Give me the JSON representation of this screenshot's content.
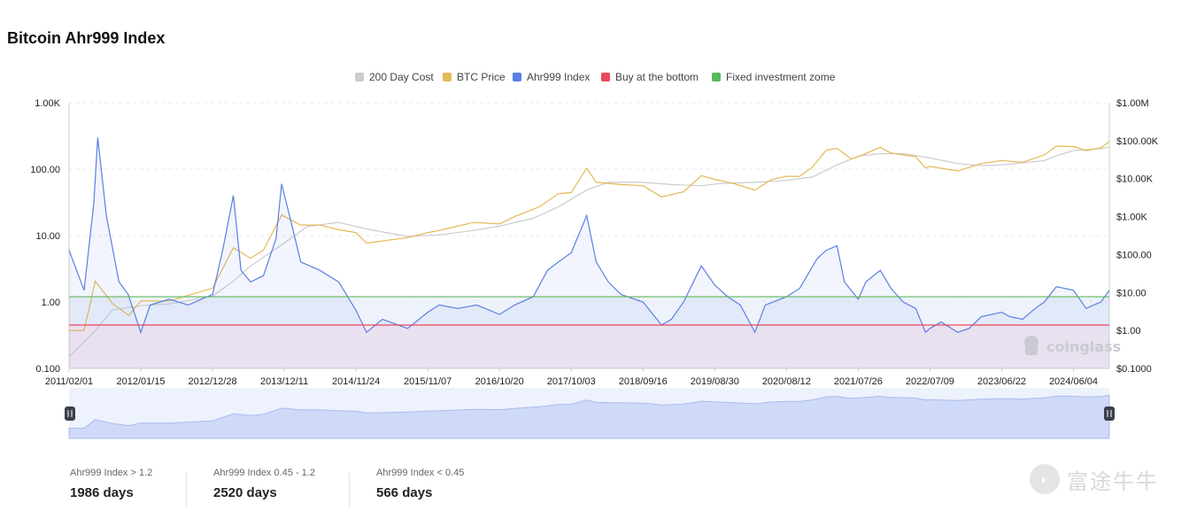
{
  "title": "Bitcoin Ahr999 Index",
  "legend": [
    {
      "label": "200 Day Cost",
      "color": "#cccccc"
    },
    {
      "label": "BTC Price",
      "color": "#e2b955"
    },
    {
      "label": "Ahr999 Index",
      "color": "#5b7fe3"
    },
    {
      "label": "Buy at the bottom",
      "color": "#e8485e"
    },
    {
      "label": "Fixed investment zome",
      "color": "#5cb85c"
    }
  ],
  "chart_data": {
    "type": "line",
    "title": "Bitcoin Ahr999 Index",
    "x_tick_labels": [
      "2011/02/01",
      "2012/01/15",
      "2012/12/28",
      "2013/12/11",
      "2014/11/24",
      "2015/11/07",
      "2016/10/20",
      "2017/10/03",
      "2018/09/16",
      "2019/08/30",
      "2020/08/12",
      "2021/07/26",
      "2022/07/09",
      "2023/06/22",
      "2024/06/04"
    ],
    "left_axis": {
      "scale": "log",
      "ticks": [
        "1.00K",
        "100.00",
        "10.00",
        "1.00",
        "0.100"
      ],
      "range": [
        0.1,
        1000
      ]
    },
    "right_axis": {
      "scale": "log",
      "ticks": [
        "$1.00M",
        "$100.00K",
        "$10.00K",
        "$1.00K",
        "$100.00",
        "$10.00",
        "$1.00",
        "$0.1000"
      ],
      "range": [
        0.1,
        1000000
      ]
    },
    "x_range": [
      "2011/02/01",
      "2024/11/25"
    ],
    "series": [
      {
        "name": "Ahr999 Index",
        "axis": "left",
        "color": "#5b7fe3",
        "x": [
          "2011/02/01",
          "2011/04/15",
          "2011/06/01",
          "2011/06/20",
          "2011/08/01",
          "2011/10/01",
          "2011/11/15",
          "2012/01/15",
          "2012/03/01",
          "2012/06/01",
          "2012/09/01",
          "2012/12/28",
          "2013/02/15",
          "2013/04/08",
          "2013/05/15",
          "2013/07/01",
          "2013/09/01",
          "2013/11/01",
          "2013/11/28",
          "2014/01/15",
          "2014/03/01",
          "2014/06/01",
          "2014/09/01",
          "2014/11/24",
          "2015/01/14",
          "2015/04/01",
          "2015/08/01",
          "2015/11/07",
          "2016/01/01",
          "2016/04/01",
          "2016/07/01",
          "2016/10/20",
          "2017/01/01",
          "2017/04/01",
          "2017/06/10",
          "2017/08/01",
          "2017/10/03",
          "2017/12/17",
          "2018/02/01",
          "2018/04/01",
          "2018/06/01",
          "2018/09/16",
          "2018/12/15",
          "2019/02/01",
          "2019/04/01",
          "2019/06/26",
          "2019/08/30",
          "2019/11/01",
          "2020/01/01",
          "2020/03/12",
          "2020/05/01",
          "2020/08/12",
          "2020/10/15",
          "2021/01/08",
          "2021/02/21",
          "2021/04/14",
          "2021/05/20",
          "2021/07/26",
          "2021/09/01",
          "2021/11/10",
          "2022/01/01",
          "2022/03/01",
          "2022/05/01",
          "2022/06/18",
          "2022/07/09",
          "2022/09/01",
          "2022/11/21",
          "2023/01/15",
          "2023/03/15",
          "2023/06/22",
          "2023/08/01",
          "2023/10/01",
          "2023/12/01",
          "2024/01/15",
          "2024/03/13",
          "2024/06/04",
          "2024/08/05",
          "2024/09/10",
          "2024/10/15",
          "2024/11/25"
        ],
        "values": [
          6.0,
          1.5,
          30,
          300,
          20,
          2.0,
          1.3,
          0.35,
          0.9,
          1.1,
          0.9,
          1.3,
          6.0,
          40,
          3.0,
          2.0,
          2.5,
          9.0,
          60,
          15,
          4.0,
          3.0,
          2.0,
          0.75,
          0.35,
          0.55,
          0.4,
          0.7,
          0.9,
          0.8,
          0.9,
          0.65,
          0.9,
          1.2,
          3.0,
          4.0,
          5.5,
          20,
          4.0,
          2.0,
          1.3,
          1.0,
          0.45,
          0.55,
          1.0,
          3.5,
          1.8,
          1.2,
          0.9,
          0.35,
          0.9,
          1.2,
          1.6,
          4.5,
          6.0,
          7.0,
          2.0,
          1.1,
          2.0,
          3.0,
          1.6,
          1.0,
          0.8,
          0.35,
          0.4,
          0.5,
          0.35,
          0.4,
          0.6,
          0.7,
          0.6,
          0.55,
          0.8,
          1.0,
          1.7,
          1.5,
          0.8,
          0.9,
          1.0,
          1.5
        ]
      },
      {
        "name": "BTC Price",
        "axis": "right",
        "color": "#e2b955",
        "x": [
          "2011/02/01",
          "2011/04/15",
          "2011/06/08",
          "2011/09/01",
          "2011/11/18",
          "2012/01/15",
          "2012/06/01",
          "2012/12/28",
          "2013/04/08",
          "2013/07/01",
          "2013/09/01",
          "2013/11/28",
          "2014/03/01",
          "2014/06/01",
          "2014/09/01",
          "2014/11/24",
          "2015/01/14",
          "2015/08/01",
          "2015/11/07",
          "2016/01/01",
          "2016/06/15",
          "2016/10/20",
          "2017/01/01",
          "2017/05/01",
          "2017/08/01",
          "2017/10/03",
          "2017/12/17",
          "2018/02/01",
          "2018/06/01",
          "2018/09/16",
          "2018/12/15",
          "2019/04/01",
          "2019/06/26",
          "2019/08/30",
          "2019/12/01",
          "2020/03/12",
          "2020/06/01",
          "2020/08/12",
          "2020/10/15",
          "2020/12/15",
          "2021/02/21",
          "2021/04/14",
          "2021/06/22",
          "2021/07/26",
          "2021/11/10",
          "2022/01/01",
          "2022/05/01",
          "2022/06/18",
          "2022/07/09",
          "2022/11/21",
          "2023/03/15",
          "2023/06/22",
          "2023/10/01",
          "2024/01/15",
          "2024/03/13",
          "2024/06/04",
          "2024/08/05",
          "2024/10/15",
          "2024/11/25"
        ],
        "values": [
          1,
          1,
          20,
          5,
          2.5,
          6,
          6,
          13,
          150,
          80,
          130,
          1100,
          600,
          600,
          450,
          380,
          200,
          280,
          380,
          430,
          700,
          640,
          1000,
          1800,
          4000,
          4300,
          19000,
          8000,
          7000,
          6500,
          3300,
          4500,
          12000,
          9600,
          7400,
          5000,
          9500,
          11500,
          11500,
          20000,
          56000,
          63000,
          33000,
          38000,
          67000,
          47000,
          38000,
          19000,
          21000,
          16000,
          25000,
          30000,
          27000,
          42000,
          72000,
          70000,
          55000,
          65000,
          95000
        ]
      },
      {
        "name": "200 Day Cost",
        "axis": "right",
        "color": "#cccccc",
        "x": [
          "2011/02/01",
          "2011/06/01",
          "2011/09/01",
          "2012/01/15",
          "2012/06/01",
          "2012/12/28",
          "2013/04/08",
          "2013/07/01",
          "2013/12/11",
          "2014/04/01",
          "2014/09/01",
          "2015/02/01",
          "2015/08/01",
          "2016/01/01",
          "2016/06/01",
          "2016/10/20",
          "2017/04/01",
          "2017/08/01",
          "2017/12/17",
          "2018/04/01",
          "2018/09/16",
          "2019/02/01",
          "2019/06/26",
          "2019/10/01",
          "2020/03/12",
          "2020/08/12",
          "2020/12/15",
          "2021/04/14",
          "2021/08/01",
          "2021/11/10",
          "2022/03/01",
          "2022/07/09",
          "2022/11/21",
          "2023/03/15",
          "2023/06/22",
          "2023/10/01",
          "2024/01/15",
          "2024/03/13",
          "2024/06/04",
          "2024/10/15",
          "2024/11/25"
        ],
        "values": [
          0.2,
          0.9,
          3.5,
          4.5,
          5.0,
          8.0,
          20,
          50,
          200,
          550,
          700,
          450,
          300,
          330,
          420,
          560,
          900,
          1800,
          5000,
          8000,
          8000,
          7000,
          6500,
          7500,
          8000,
          9000,
          11000,
          23000,
          40000,
          45000,
          46000,
          35000,
          25000,
          22000,
          23000,
          26000,
          30000,
          40000,
          55000,
          62000,
          68000
        ]
      },
      {
        "name": "Buy at the bottom",
        "axis": "left",
        "color": "#e8485e",
        "constant": 0.45
      },
      {
        "name": "Fixed investment zome",
        "axis": "left",
        "color": "#5cb85c",
        "constant": 1.2
      }
    ]
  },
  "stats": [
    {
      "label": "Ahr999 Index > 1.2",
      "value": "1986 days"
    },
    {
      "label": "Ahr999 Index 0.45 - 1.2",
      "value": "2520 days"
    },
    {
      "label": "Ahr999 Index < 0.45",
      "value": "566 days"
    }
  ],
  "watermark": "coinglass",
  "footer_brand": "富途牛牛",
  "slider": {
    "handle_left_icon": "grip-icon",
    "handle_right_icon": "grip-icon"
  }
}
